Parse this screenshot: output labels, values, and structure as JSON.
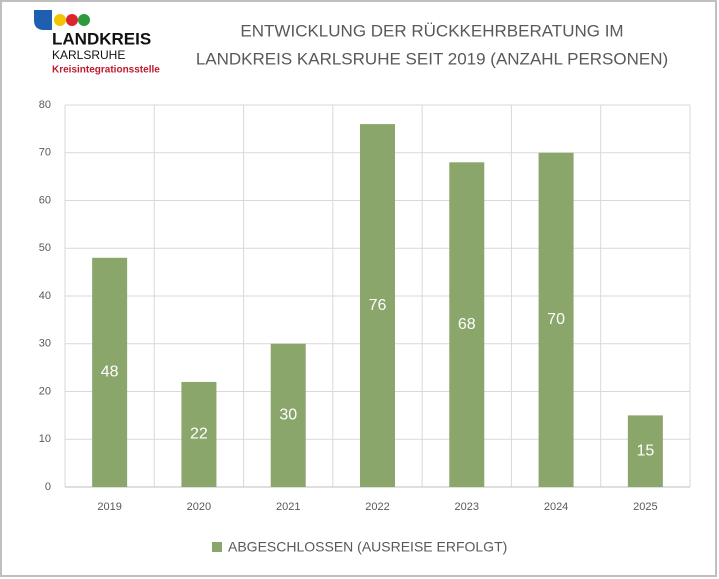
{
  "logo": {
    "name": "LANDKREIS",
    "region": "KARLSRUHE",
    "unit": "Kreisintegrationsstelle"
  },
  "chart_data": {
    "type": "bar",
    "title": [
      "ENTWICKLUNG DER RÜCKKEHRBERATUNG  IM",
      "LANDKREIS KARLSRUHE SEIT 2019 (ANZAHL PERSONEN)"
    ],
    "categories": [
      "2019",
      "2020",
      "2021",
      "2022",
      "2023",
      "2024",
      "2025"
    ],
    "series": [
      {
        "name": "ABGESCHLOSSEN (AUSREISE ERFOLGT)",
        "color": "#8aa66a",
        "values": [
          48,
          22,
          30,
          76,
          68,
          70,
          15
        ]
      }
    ],
    "ylim": [
      0,
      80
    ],
    "yticks": [
      0,
      10,
      20,
      30,
      40,
      50,
      60,
      70,
      80
    ],
    "grid": true,
    "legend": "bottom"
  }
}
